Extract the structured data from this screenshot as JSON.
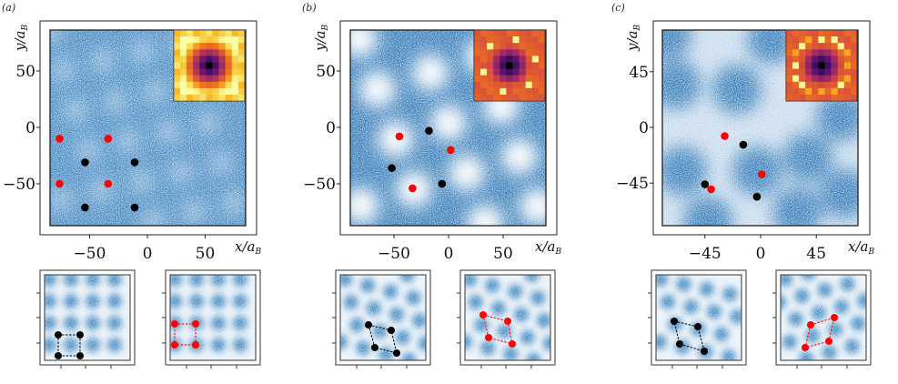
{
  "figure": {
    "panels": [
      {
        "label": "(a)",
        "x_ticks": [
          -50,
          0,
          50
        ],
        "y_ticks": [
          50,
          0,
          -50
        ],
        "x_label": {
          "main": "x/a",
          "sub": "B"
        },
        "y_label": {
          "main": "y/a",
          "sub": "B"
        },
        "inset_colormap": "inferno",
        "red_points": [
          [
            -76,
            -10
          ],
          [
            -34,
            -10
          ],
          [
            -76,
            -50
          ],
          [
            -34,
            -50
          ]
        ],
        "black_points": [
          [
            -54,
            -31
          ],
          [
            -11,
            -31
          ],
          [
            -54,
            -71
          ],
          [
            -11,
            -71
          ]
        ]
      },
      {
        "label": "(b)",
        "x_ticks": [
          -50,
          0,
          50
        ],
        "y_ticks": [
          50,
          0,
          -50
        ],
        "x_label": {
          "main": "x/a",
          "sub": "B"
        },
        "y_label": {
          "main": "y/a",
          "sub": "B"
        },
        "inset_colormap": "inferno",
        "red_points": [
          [
            -45,
            -8
          ],
          [
            2,
            -20
          ],
          [
            -33,
            -54
          ]
        ],
        "black_points": [
          [
            -18,
            -3
          ],
          [
            -52,
            -36
          ],
          [
            -6,
            -50
          ]
        ]
      },
      {
        "label": "(c)",
        "x_ticks": [
          -45,
          0,
          45
        ],
        "y_ticks": [
          45,
          0,
          -45
        ],
        "x_label": {
          "main": "x/a",
          "sub": "B"
        },
        "y_label": {
          "main": "y/a",
          "sub": "B"
        },
        "inset_colormap": "inferno",
        "red_points": [
          [
            -29,
            -7
          ],
          [
            1,
            -38
          ],
          [
            -40,
            -50
          ]
        ],
        "black_points": [
          [
            -14,
            -14
          ],
          [
            -45,
            -46
          ],
          [
            -3,
            -56
          ]
        ]
      }
    ],
    "colors": {
      "density": "#3d82bc",
      "red_marker": "#ff0000",
      "black_marker": "#000000"
    }
  }
}
